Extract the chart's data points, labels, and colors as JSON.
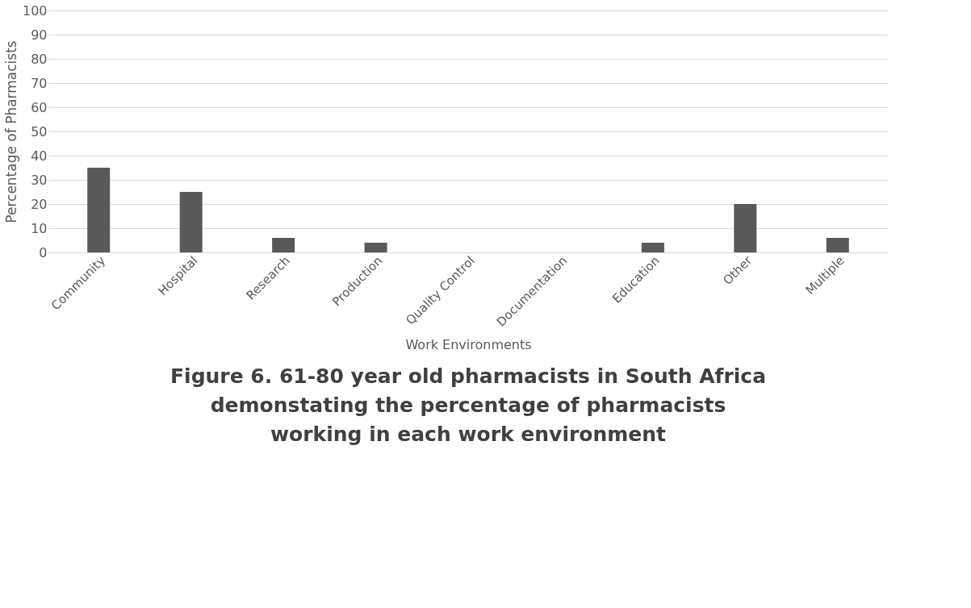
{
  "chart_data": {
    "type": "bar",
    "title": "Figure 6. 61-80 year old pharmacists in South Africa\ndemonstating the percentage of pharmacists\nworking in each work environment",
    "xlabel": "Work Environments",
    "ylabel": "Percentage of Pharmacists",
    "categories": [
      "Community",
      "Hospital",
      "Research",
      "Production",
      "Quality Control",
      "Documentation",
      "Education",
      "Other",
      "Multiple"
    ],
    "values": [
      35,
      25,
      6,
      4,
      0,
      0,
      4,
      20,
      6
    ],
    "color": "#595959",
    "ylim": [
      0,
      100
    ],
    "yticks": [
      0,
      10,
      20,
      30,
      40,
      50,
      60,
      70,
      80,
      90,
      100
    ],
    "grid": "y"
  }
}
